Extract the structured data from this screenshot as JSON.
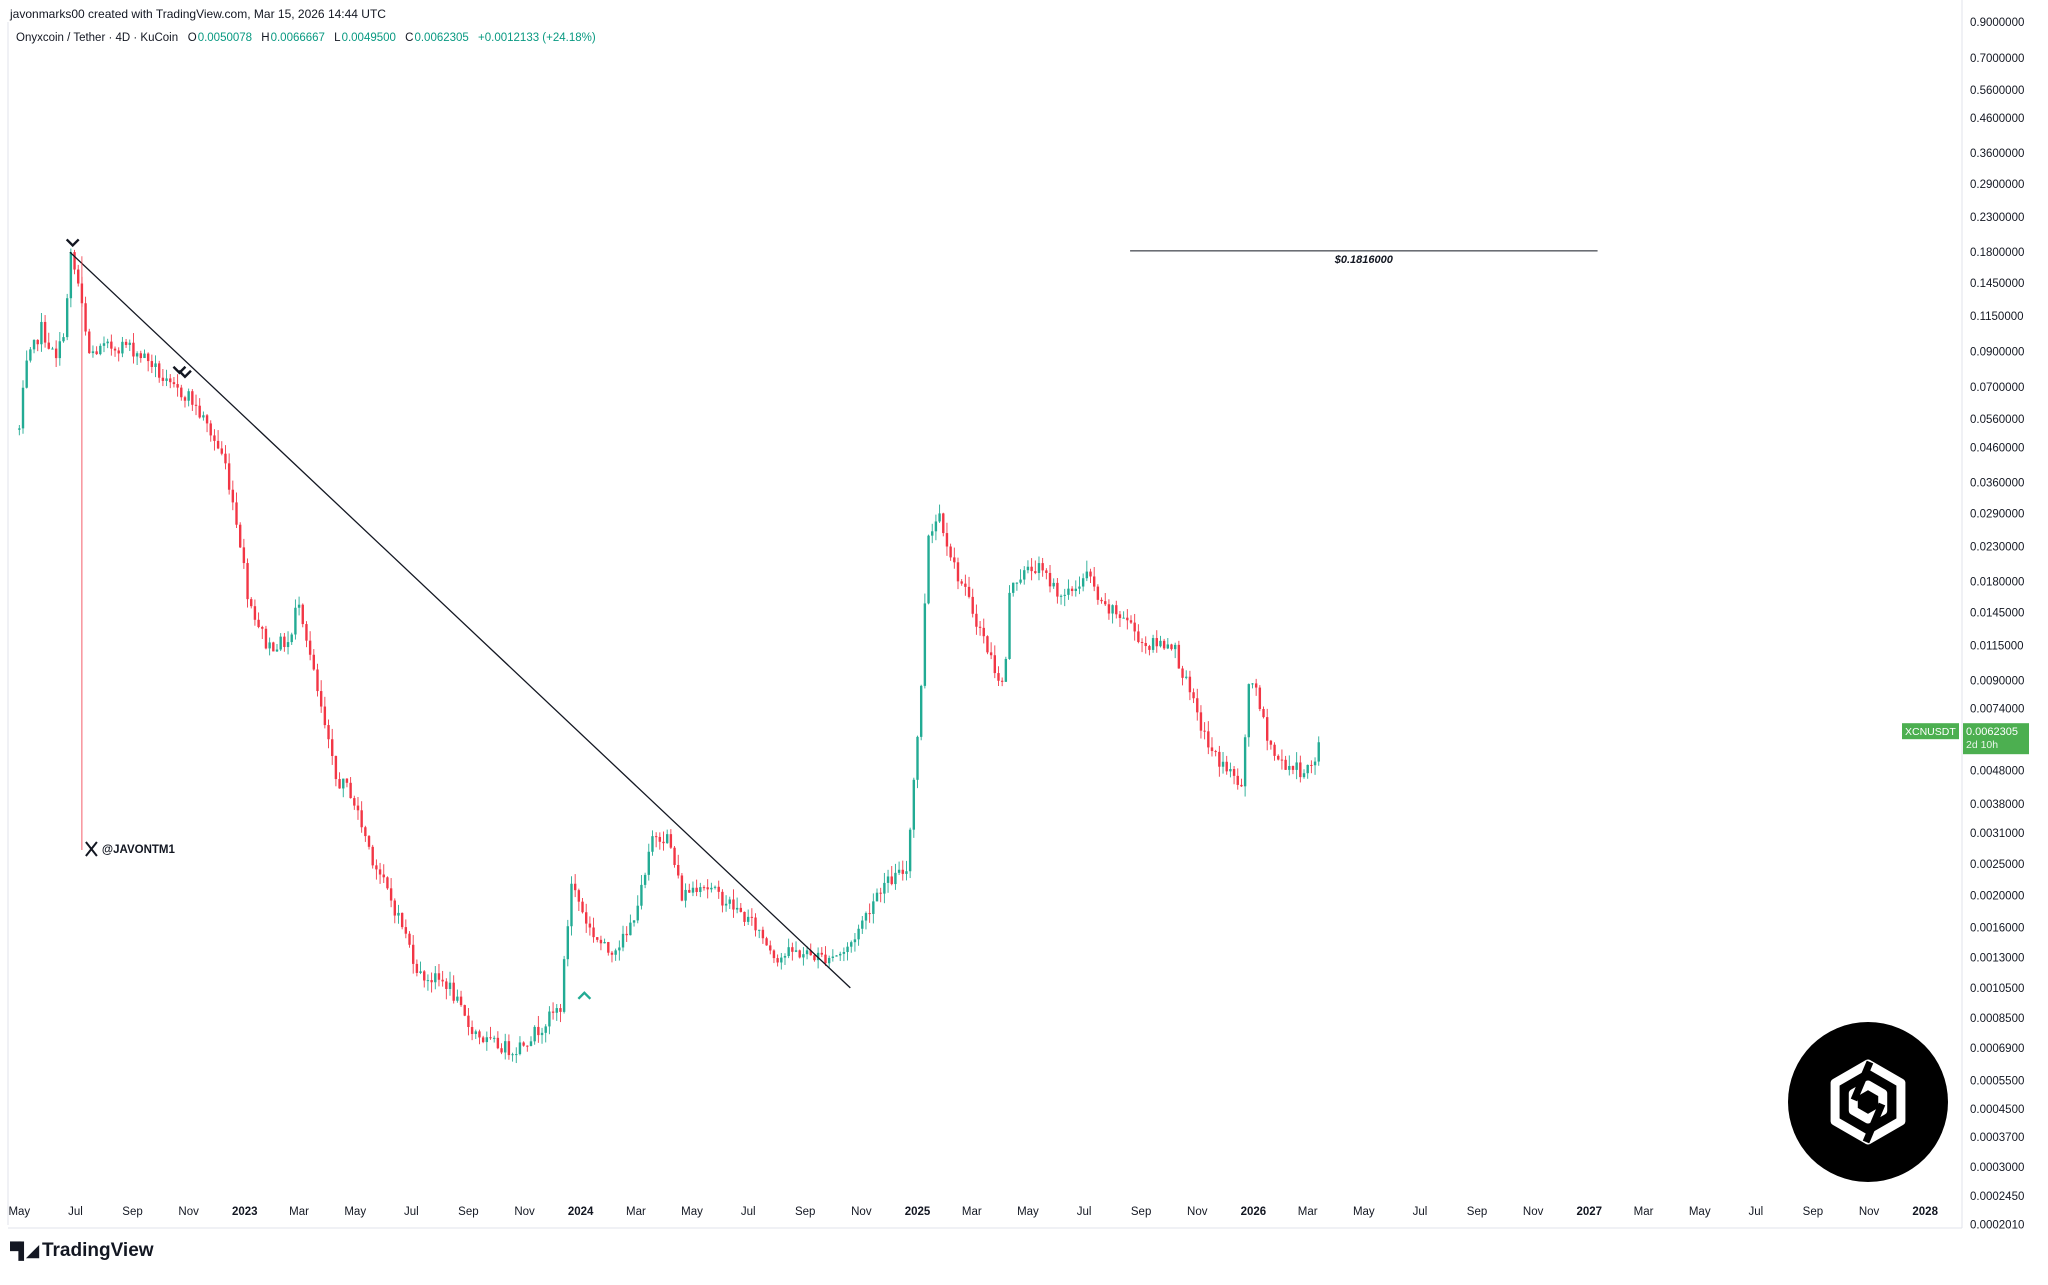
{
  "header": {
    "created_by": "javonmarks00 created with TradingView.com, Mar 15, 2026 14:44 UTC"
  },
  "legend": {
    "symbol": "Onyxcoin / Tether · 4D · KuCoin",
    "o_label": "O",
    "o_value": "0.0050078",
    "h_label": "H",
    "h_value": "0.0066667",
    "l_label": "L",
    "l_value": "0.0049500",
    "c_label": "C",
    "c_value": "0.0062305",
    "change": "+0.0012133 (+24.18%)"
  },
  "watermark": {
    "handle": "@JAVONTM1"
  },
  "footer": {
    "brand": "TradingView"
  },
  "colors": {
    "up": "#22ab94",
    "down": "#f23645",
    "line": "#131722",
    "price_tag": "#4caf50",
    "logo_circle": "#000000"
  },
  "chart_data": {
    "type": "candlestick",
    "title": "",
    "scale": "log",
    "ylim": [
      0.0002,
      0.9
    ],
    "xlim": [
      "2022-04-10",
      "2028-02-10"
    ],
    "y_ticks": [
      "0.9000000",
      "0.7000000",
      "0.5600000",
      "0.4600000",
      "0.3600000",
      "0.2900000",
      "0.2300000",
      "0.1800000",
      "0.1450000",
      "0.1150000",
      "0.0900000",
      "0.0700000",
      "0.0560000",
      "0.0460000",
      "0.0360000",
      "0.0290000",
      "0.0230000",
      "0.0180000",
      "0.0145000",
      "0.0115000",
      "0.0090000",
      "0.0074000",
      "0.0048000",
      "0.0038000",
      "0.0031000",
      "0.0025000",
      "0.0020000",
      "0.0016000",
      "0.0013000",
      "0.0010500",
      "0.0008500",
      "0.0006900",
      "0.0005500",
      "0.0004500",
      "0.0003700",
      "0.0003000",
      "0.0002450",
      "0.0002010"
    ],
    "x_ticks": [
      {
        "label": "May",
        "date": "2022-05-01"
      },
      {
        "label": "Jul",
        "date": "2022-07-01"
      },
      {
        "label": "Sep",
        "date": "2022-09-01"
      },
      {
        "label": "Nov",
        "date": "2022-11-01"
      },
      {
        "label": "2023",
        "date": "2023-01-01",
        "bold": true
      },
      {
        "label": "Mar",
        "date": "2023-03-01"
      },
      {
        "label": "May",
        "date": "2023-05-01"
      },
      {
        "label": "Jul",
        "date": "2023-07-01"
      },
      {
        "label": "Sep",
        "date": "2023-09-01"
      },
      {
        "label": "Nov",
        "date": "2023-11-01"
      },
      {
        "label": "2024",
        "date": "2024-01-01",
        "bold": true
      },
      {
        "label": "Mar",
        "date": "2024-03-01"
      },
      {
        "label": "May",
        "date": "2024-05-01"
      },
      {
        "label": "Jul",
        "date": "2024-07-01"
      },
      {
        "label": "Sep",
        "date": "2024-09-01"
      },
      {
        "label": "Nov",
        "date": "2024-11-01"
      },
      {
        "label": "2025",
        "date": "2025-01-01",
        "bold": true
      },
      {
        "label": "Mar",
        "date": "2025-03-01"
      },
      {
        "label": "May",
        "date": "2025-05-01"
      },
      {
        "label": "Jul",
        "date": "2025-07-01"
      },
      {
        "label": "Sep",
        "date": "2025-09-01"
      },
      {
        "label": "Nov",
        "date": "2025-11-01"
      },
      {
        "label": "2026",
        "date": "2026-01-01",
        "bold": true
      },
      {
        "label": "Mar",
        "date": "2026-03-01"
      },
      {
        "label": "May",
        "date": "2026-05-01"
      },
      {
        "label": "Jul",
        "date": "2026-07-01"
      },
      {
        "label": "Sep",
        "date": "2026-09-01"
      },
      {
        "label": "Nov",
        "date": "2026-11-01"
      },
      {
        "label": "2027",
        "date": "2027-01-01",
        "bold": true
      },
      {
        "label": "Mar",
        "date": "2027-03-01"
      },
      {
        "label": "May",
        "date": "2027-05-01"
      },
      {
        "label": "Jul",
        "date": "2027-07-01"
      },
      {
        "label": "Sep",
        "date": "2027-09-01"
      },
      {
        "label": "Nov",
        "date": "2027-11-01"
      },
      {
        "label": "2028",
        "date": "2028-01-01",
        "bold": true
      }
    ],
    "price_path": [
      [
        "2022-05-01",
        0.052
      ],
      [
        "2022-05-08",
        0.08
      ],
      [
        "2022-05-25",
        0.106
      ],
      [
        "2022-06-10",
        0.084
      ],
      [
        "2022-06-20",
        0.11
      ],
      [
        "2022-06-26",
        0.175
      ],
      [
        "2022-07-05",
        0.14
      ],
      [
        "2022-07-15",
        0.088
      ],
      [
        "2022-08-01",
        0.092
      ],
      [
        "2022-08-25",
        0.094
      ],
      [
        "2022-09-20",
        0.084
      ],
      [
        "2022-10-10",
        0.07
      ],
      [
        "2022-11-01",
        0.066
      ],
      [
        "2022-11-20",
        0.054
      ],
      [
        "2022-12-10",
        0.042
      ],
      [
        "2022-12-25",
        0.026
      ],
      [
        "2023-01-05",
        0.016
      ],
      [
        "2023-01-25",
        0.0115
      ],
      [
        "2023-02-20",
        0.0118
      ],
      [
        "2023-02-28",
        0.0165
      ],
      [
        "2023-03-20",
        0.0085
      ],
      [
        "2023-04-10",
        0.0045
      ],
      [
        "2023-04-25",
        0.0042
      ],
      [
        "2023-05-20",
        0.0026
      ],
      [
        "2023-06-20",
        0.00165
      ],
      [
        "2023-07-10",
        0.00115
      ],
      [
        "2023-08-10",
        0.00108
      ],
      [
        "2023-08-30",
        0.00082
      ],
      [
        "2023-09-20",
        0.00072
      ],
      [
        "2023-10-20",
        0.00068
      ],
      [
        "2023-11-15",
        0.00078
      ],
      [
        "2023-12-10",
        0.00092
      ],
      [
        "2023-12-22",
        0.0022
      ],
      [
        "2024-01-10",
        0.0016
      ],
      [
        "2024-01-30",
        0.00135
      ],
      [
        "2024-02-20",
        0.0015
      ],
      [
        "2024-03-10",
        0.0022
      ],
      [
        "2024-03-20",
        0.0031
      ],
      [
        "2024-04-05",
        0.003
      ],
      [
        "2024-04-20",
        0.002
      ],
      [
        "2024-05-10",
        0.0022
      ],
      [
        "2024-06-10",
        0.0019
      ],
      [
        "2024-07-10",
        0.0016
      ],
      [
        "2024-08-01",
        0.0013
      ],
      [
        "2024-08-20",
        0.00135
      ],
      [
        "2024-09-20",
        0.0013
      ],
      [
        "2024-10-15",
        0.00135
      ],
      [
        "2024-10-30",
        0.0016
      ],
      [
        "2024-11-20",
        0.0021
      ],
      [
        "2024-12-20",
        0.0024
      ],
      [
        "2025-01-05",
        0.0085
      ],
      [
        "2025-01-12",
        0.025
      ],
      [
        "2025-01-25",
        0.029
      ],
      [
        "2025-02-10",
        0.02
      ],
      [
        "2025-03-05",
        0.014
      ],
      [
        "2025-03-25",
        0.01
      ],
      [
        "2025-04-05",
        0.0085
      ],
      [
        "2025-04-12",
        0.018
      ],
      [
        "2025-05-10",
        0.02
      ],
      [
        "2025-06-10",
        0.016
      ],
      [
        "2025-07-05",
        0.019
      ],
      [
        "2025-07-20",
        0.015
      ],
      [
        "2025-08-15",
        0.014
      ],
      [
        "2025-09-05",
        0.0115
      ],
      [
        "2025-10-05",
        0.0118
      ],
      [
        "2025-10-25",
        0.008
      ],
      [
        "2025-11-15",
        0.0055
      ],
      [
        "2025-12-05",
        0.0048
      ],
      [
        "2025-12-20",
        0.0042
      ],
      [
        "2025-12-28",
        0.0098
      ],
      [
        "2026-01-10",
        0.007
      ],
      [
        "2026-01-25",
        0.0052
      ],
      [
        "2026-02-20",
        0.0048
      ],
      [
        "2026-03-10",
        0.005
      ],
      [
        "2026-03-15",
        0.0062305
      ]
    ],
    "annotations": {
      "trendline": {
        "x1": "2022-06-25",
        "y1": 0.18,
        "x2": "2024-10-20",
        "y2": 0.00105
      },
      "resistance": {
        "label": "$0.1816000",
        "value": 0.1816,
        "x1": "2025-08-20",
        "x2": "2027-01-10"
      },
      "price_label": {
        "symbol": "XCNUSDT",
        "value": "0.0062305",
        "countdown": "2d 10h"
      },
      "marker_down_1": {
        "date": "2022-06-28",
        "value": 0.19
      },
      "marker_down_2": {
        "date": "2022-10-28",
        "value": 0.079
      },
      "marker_up": {
        "date": "2024-01-05",
        "value": 0.001
      },
      "high_guide": {
        "date": "2022-07-08"
      }
    }
  }
}
